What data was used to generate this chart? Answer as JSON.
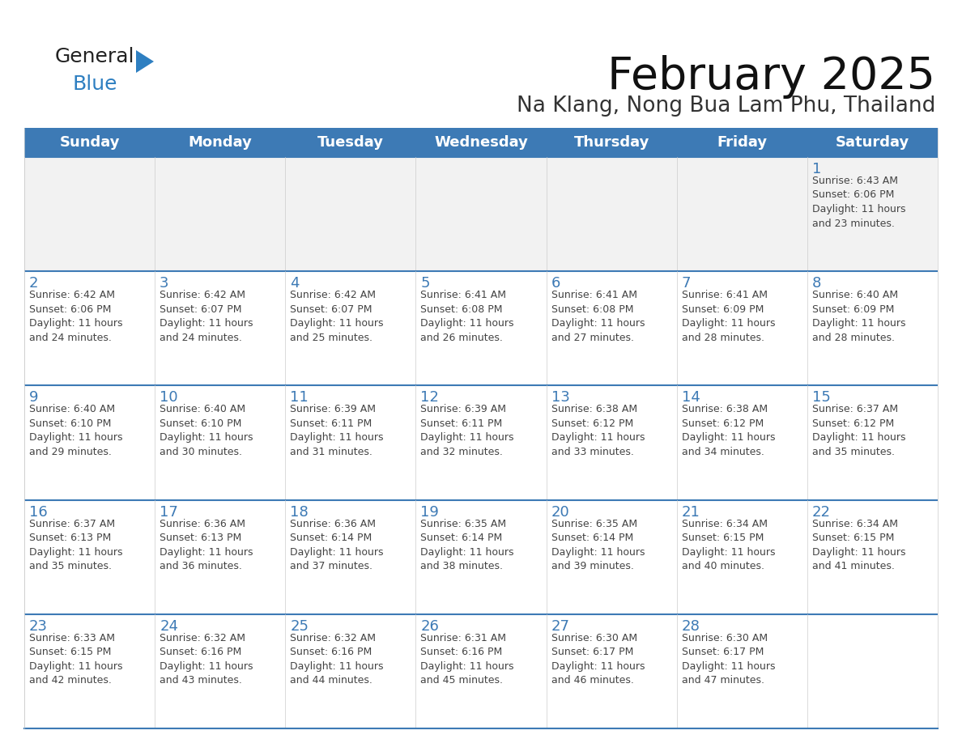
{
  "title": "February 2025",
  "subtitle": "Na Klang, Nong Bua Lam Phu, Thailand",
  "days_of_week": [
    "Sunday",
    "Monday",
    "Tuesday",
    "Wednesday",
    "Thursday",
    "Friday",
    "Saturday"
  ],
  "header_bg": "#3d7ab5",
  "header_text": "#ffffff",
  "cell_bg": "#ffffff",
  "cell_alt_bg": "#f2f2f2",
  "border_color": "#3d7ab5",
  "day_num_color": "#3d7ab5",
  "cell_text_color": "#444444",
  "title_color": "#111111",
  "subtitle_color": "#333333",
  "logo_general_color": "#222222",
  "logo_blue_color": "#2e7fc1",
  "calendar": [
    [
      null,
      null,
      null,
      null,
      null,
      null,
      1
    ],
    [
      2,
      3,
      4,
      5,
      6,
      7,
      8
    ],
    [
      9,
      10,
      11,
      12,
      13,
      14,
      15
    ],
    [
      16,
      17,
      18,
      19,
      20,
      21,
      22
    ],
    [
      23,
      24,
      25,
      26,
      27,
      28,
      null
    ]
  ],
  "sunrise_data": {
    "1": {
      "sunrise": "6:43 AM",
      "sunset": "6:06 PM",
      "daylight": "11 hours and 23 minutes."
    },
    "2": {
      "sunrise": "6:42 AM",
      "sunset": "6:06 PM",
      "daylight": "11 hours and 24 minutes."
    },
    "3": {
      "sunrise": "6:42 AM",
      "sunset": "6:07 PM",
      "daylight": "11 hours and 24 minutes."
    },
    "4": {
      "sunrise": "6:42 AM",
      "sunset": "6:07 PM",
      "daylight": "11 hours and 25 minutes."
    },
    "5": {
      "sunrise": "6:41 AM",
      "sunset": "6:08 PM",
      "daylight": "11 hours and 26 minutes."
    },
    "6": {
      "sunrise": "6:41 AM",
      "sunset": "6:08 PM",
      "daylight": "11 hours and 27 minutes."
    },
    "7": {
      "sunrise": "6:41 AM",
      "sunset": "6:09 PM",
      "daylight": "11 hours and 28 minutes."
    },
    "8": {
      "sunrise": "6:40 AM",
      "sunset": "6:09 PM",
      "daylight": "11 hours and 28 minutes."
    },
    "9": {
      "sunrise": "6:40 AM",
      "sunset": "6:10 PM",
      "daylight": "11 hours and 29 minutes."
    },
    "10": {
      "sunrise": "6:40 AM",
      "sunset": "6:10 PM",
      "daylight": "11 hours and 30 minutes."
    },
    "11": {
      "sunrise": "6:39 AM",
      "sunset": "6:11 PM",
      "daylight": "11 hours and 31 minutes."
    },
    "12": {
      "sunrise": "6:39 AM",
      "sunset": "6:11 PM",
      "daylight": "11 hours and 32 minutes."
    },
    "13": {
      "sunrise": "6:38 AM",
      "sunset": "6:12 PM",
      "daylight": "11 hours and 33 minutes."
    },
    "14": {
      "sunrise": "6:38 AM",
      "sunset": "6:12 PM",
      "daylight": "11 hours and 34 minutes."
    },
    "15": {
      "sunrise": "6:37 AM",
      "sunset": "6:12 PM",
      "daylight": "11 hours and 35 minutes."
    },
    "16": {
      "sunrise": "6:37 AM",
      "sunset": "6:13 PM",
      "daylight": "11 hours and 35 minutes."
    },
    "17": {
      "sunrise": "6:36 AM",
      "sunset": "6:13 PM",
      "daylight": "11 hours and 36 minutes."
    },
    "18": {
      "sunrise": "6:36 AM",
      "sunset": "6:14 PM",
      "daylight": "11 hours and 37 minutes."
    },
    "19": {
      "sunrise": "6:35 AM",
      "sunset": "6:14 PM",
      "daylight": "11 hours and 38 minutes."
    },
    "20": {
      "sunrise": "6:35 AM",
      "sunset": "6:14 PM",
      "daylight": "11 hours and 39 minutes."
    },
    "21": {
      "sunrise": "6:34 AM",
      "sunset": "6:15 PM",
      "daylight": "11 hours and 40 minutes."
    },
    "22": {
      "sunrise": "6:34 AM",
      "sunset": "6:15 PM",
      "daylight": "11 hours and 41 minutes."
    },
    "23": {
      "sunrise": "6:33 AM",
      "sunset": "6:15 PM",
      "daylight": "11 hours and 42 minutes."
    },
    "24": {
      "sunrise": "6:32 AM",
      "sunset": "6:16 PM",
      "daylight": "11 hours and 43 minutes."
    },
    "25": {
      "sunrise": "6:32 AM",
      "sunset": "6:16 PM",
      "daylight": "11 hours and 44 minutes."
    },
    "26": {
      "sunrise": "6:31 AM",
      "sunset": "6:16 PM",
      "daylight": "11 hours and 45 minutes."
    },
    "27": {
      "sunrise": "6:30 AM",
      "sunset": "6:17 PM",
      "daylight": "11 hours and 46 minutes."
    },
    "28": {
      "sunrise": "6:30 AM",
      "sunset": "6:17 PM",
      "daylight": "11 hours and 47 minutes."
    }
  },
  "row_alt": [
    true,
    false,
    false,
    false,
    false
  ]
}
